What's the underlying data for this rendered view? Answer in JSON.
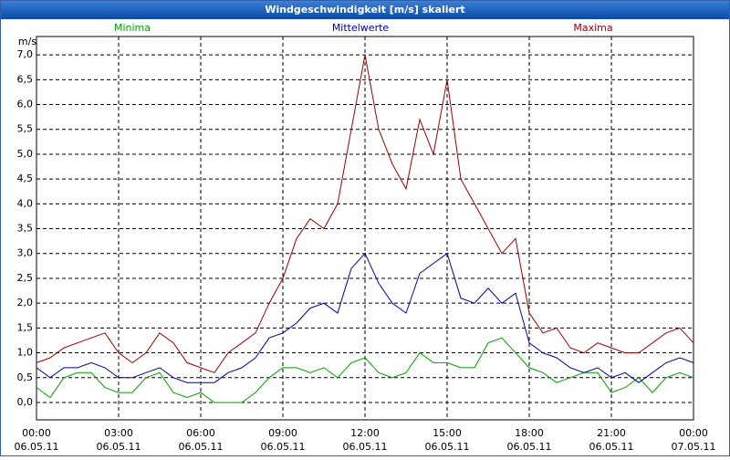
{
  "chart_data": {
    "type": "line",
    "title": "Windgeschwindigkeit [m/s] skaliert",
    "y_label": "m/s",
    "x": [
      0,
      0.5,
      1,
      1.5,
      2,
      2.5,
      3,
      3.5,
      4,
      4.5,
      5,
      5.5,
      6,
      6.5,
      7,
      7.5,
      8,
      8.5,
      9,
      9.5,
      10,
      10.5,
      11,
      11.5,
      12,
      12.5,
      13,
      13.5,
      14,
      14.5,
      15,
      15.5,
      16,
      16.5,
      17,
      17.5,
      18,
      18.5,
      19,
      19.5,
      20,
      20.5,
      21,
      21.5,
      22,
      22.5,
      23,
      23.5,
      24
    ],
    "series": [
      {
        "name": "Minima",
        "color": "#00a000",
        "values": [
          0.3,
          0.1,
          0.5,
          0.6,
          0.6,
          0.3,
          0.2,
          0.2,
          0.5,
          0.6,
          0.2,
          0.1,
          0.2,
          0.0,
          0.0,
          0.0,
          0.2,
          0.5,
          0.7,
          0.7,
          0.6,
          0.7,
          0.5,
          0.8,
          0.9,
          0.6,
          0.5,
          0.6,
          1.0,
          0.8,
          0.8,
          0.7,
          0.7,
          1.2,
          1.3,
          1.0,
          0.7,
          0.6,
          0.4,
          0.5,
          0.6,
          0.6,
          0.2,
          0.3,
          0.5,
          0.2,
          0.5,
          0.6,
          0.5
        ]
      },
      {
        "name": "Mittelwerte",
        "color": "#0000a0",
        "values": [
          0.7,
          0.5,
          0.7,
          0.7,
          0.8,
          0.7,
          0.5,
          0.5,
          0.6,
          0.7,
          0.5,
          0.4,
          0.4,
          0.4,
          0.6,
          0.7,
          0.9,
          1.3,
          1.4,
          1.6,
          1.9,
          2.0,
          1.8,
          2.7,
          3.0,
          2.4,
          2.0,
          1.8,
          2.6,
          2.8,
          3.0,
          2.1,
          2.0,
          2.3,
          2.0,
          2.2,
          1.2,
          1.0,
          0.9,
          0.7,
          0.6,
          0.7,
          0.5,
          0.6,
          0.4,
          0.6,
          0.8,
          0.9,
          0.8
        ]
      },
      {
        "name": "Maxima",
        "color": "#a00000",
        "values": [
          0.8,
          0.9,
          1.1,
          1.2,
          1.3,
          1.4,
          1.0,
          0.8,
          1.0,
          1.4,
          1.2,
          0.8,
          0.7,
          0.6,
          1.0,
          1.2,
          1.4,
          2.0,
          2.5,
          3.3,
          3.7,
          3.5,
          4.0,
          5.5,
          7.0,
          5.5,
          4.8,
          4.3,
          5.7,
          5.0,
          6.5,
          4.5,
          4.0,
          3.5,
          3.0,
          3.3,
          1.8,
          1.4,
          1.5,
          1.1,
          1.0,
          1.2,
          1.1,
          1.0,
          1.0,
          1.2,
          1.4,
          1.5,
          1.2
        ]
      }
    ],
    "xlim": [
      0,
      24
    ],
    "xticks": [
      {
        "value": 0,
        "label": "00:00",
        "date": "06.05.11"
      },
      {
        "value": 3,
        "label": "03:00",
        "date": "06.05.11"
      },
      {
        "value": 6,
        "label": "06:00",
        "date": "06.05.11"
      },
      {
        "value": 9,
        "label": "09:00",
        "date": "06.05.11"
      },
      {
        "value": 12,
        "label": "12:00",
        "date": "06.05.11"
      },
      {
        "value": 15,
        "label": "15:00",
        "date": "06.05.11"
      },
      {
        "value": 18,
        "label": "18:00",
        "date": "06.05.11"
      },
      {
        "value": 21,
        "label": "21:00",
        "date": "06.05.11"
      },
      {
        "value": 24,
        "label": "00:00",
        "date": "07.05.11"
      }
    ],
    "ylim": [
      -0.35,
      7.37
    ],
    "yticks": [
      {
        "value": 0,
        "label": "0,0"
      },
      {
        "value": 0.5,
        "label": "0,5"
      },
      {
        "value": 1,
        "label": "1,0"
      },
      {
        "value": 1.5,
        "label": "1,5"
      },
      {
        "value": 2,
        "label": "2,0"
      },
      {
        "value": 2.5,
        "label": "2,5"
      },
      {
        "value": 3,
        "label": "3,0"
      },
      {
        "value": 3.5,
        "label": "3,5"
      },
      {
        "value": 4,
        "label": "4,0"
      },
      {
        "value": 4.5,
        "label": "4,5"
      },
      {
        "value": 5,
        "label": "5,0"
      },
      {
        "value": 5.5,
        "label": "5,5"
      },
      {
        "value": 6,
        "label": "6,0"
      },
      {
        "value": 6.5,
        "label": "6,5"
      },
      {
        "value": 7,
        "label": "7,0"
      }
    ],
    "grid": true
  }
}
